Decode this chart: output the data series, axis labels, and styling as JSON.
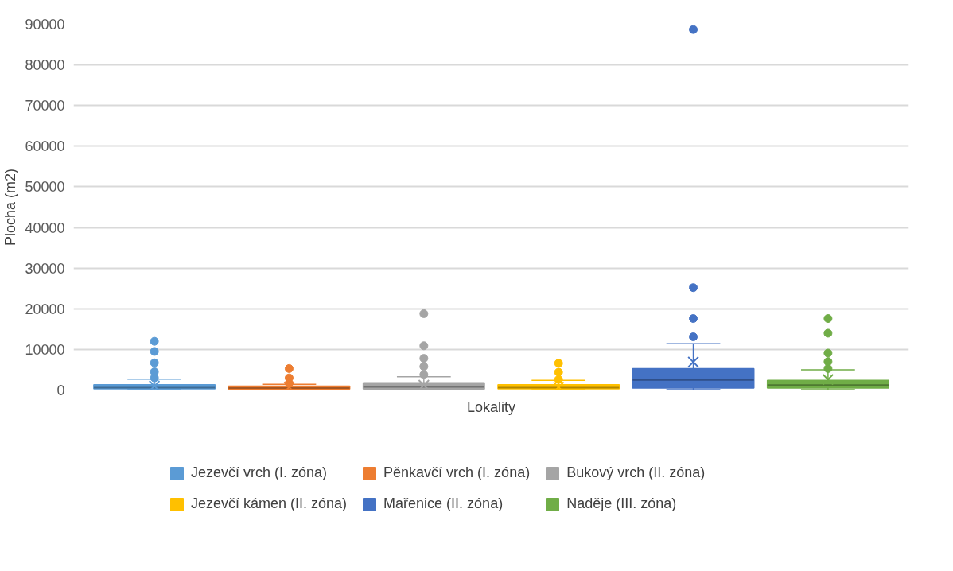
{
  "chart_data": {
    "type": "box",
    "xlabel": "Lokality",
    "ylabel": "Plocha (m2)",
    "categories": [
      null
    ],
    "ylim": [
      0,
      90000
    ],
    "yticks": [
      0,
      10000,
      20000,
      30000,
      40000,
      50000,
      60000,
      70000,
      80000,
      90000
    ],
    "grid": "y",
    "legend": "bottom",
    "tick_labels": "y",
    "series": [
      {
        "name": "Jezevčí vrch (I. zóna)",
        "color": "#5b9bd5",
        "boxes": [
          {
            "low": 100,
            "q1": 300,
            "median": 600,
            "q3": 1300,
            "high": 2700,
            "mean": 1000,
            "outliers": [
              3000,
              4500,
              6700,
              9500,
              12000
            ]
          }
        ]
      },
      {
        "name": "Pěnkavčí vrch (I. zóna)",
        "color": "#ed7d31",
        "boxes": [
          {
            "low": 100,
            "q1": 250,
            "median": 500,
            "q3": 1000,
            "high": 1400,
            "mean": 700,
            "outliers": [
              1700,
              3000,
              5300
            ]
          }
        ]
      },
      {
        "name": "Bukový vrch (II. zóna)",
        "color": "#a5a5a5",
        "boxes": [
          {
            "low": 100,
            "q1": 250,
            "median": 800,
            "q3": 1800,
            "high": 3300,
            "mean": 1200,
            "outliers": [
              3800,
              5800,
              7800,
              10900,
              18800
            ]
          }
        ]
      },
      {
        "name": "Jezevčí kámen (II. zóna)",
        "color": "#ffc000",
        "boxes": [
          {
            "low": 100,
            "q1": 300,
            "median": 600,
            "q3": 1300,
            "high": 2400,
            "mean": 700,
            "outliers": [
              2600,
              4400,
              6600
            ]
          }
        ]
      },
      {
        "name": "Mařenice (II. zóna)",
        "color": "#4472c4",
        "boxes": [
          {
            "low": 100,
            "q1": 500,
            "median": 2500,
            "q3": 5300,
            "high": 11400,
            "mean": 6900,
            "outliers": [
              13100,
              17600,
              25200,
              88700
            ]
          }
        ]
      },
      {
        "name": "Naděje (III. zóna)",
        "color": "#70ad47",
        "boxes": [
          {
            "low": 100,
            "q1": 500,
            "median": 1200,
            "q3": 2400,
            "high": 5000,
            "mean": 2600,
            "outliers": [
              5300,
              7000,
              9100,
              14000,
              17600
            ]
          }
        ]
      }
    ]
  }
}
